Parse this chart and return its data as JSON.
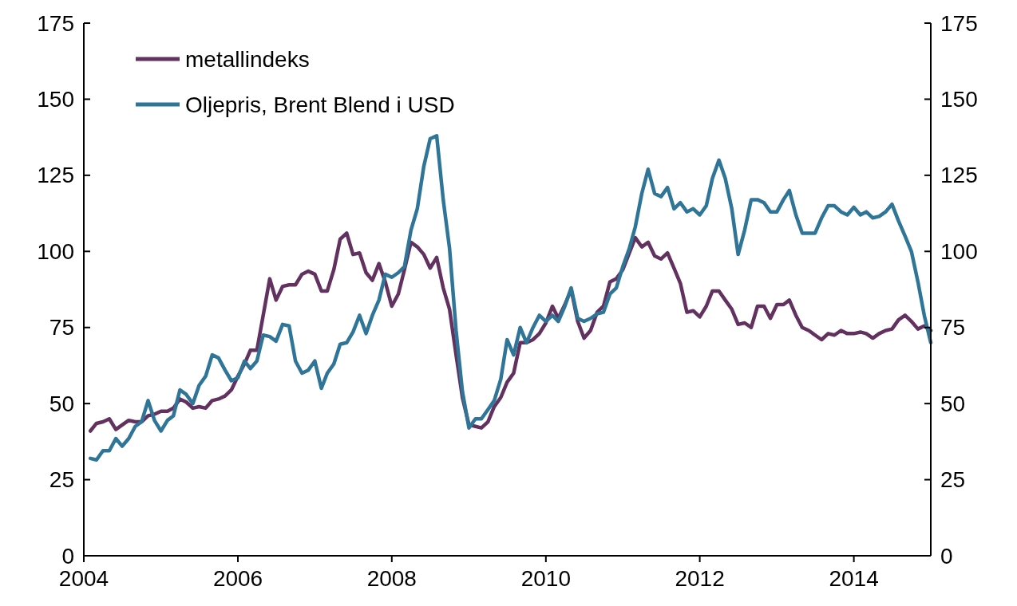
{
  "chart_data": {
    "type": "line",
    "xlim": [
      "2004-01-01",
      "2015-01-01"
    ],
    "xticks": [
      {
        "value": "2004-01-01",
        "label": "2004"
      },
      {
        "value": "2006-01-01",
        "label": "2006"
      },
      {
        "value": "2008-01-01",
        "label": "2008"
      },
      {
        "value": "2010-01-01",
        "label": "2010"
      },
      {
        "value": "2012-01-01",
        "label": "2012"
      },
      {
        "value": "2014-01-01",
        "label": "2014"
      }
    ],
    "ylim": [
      0,
      175
    ],
    "yticks": [
      0,
      25,
      50,
      75,
      100,
      125,
      150,
      175
    ],
    "y2lim": [
      0,
      175
    ],
    "y2ticks": [
      0,
      25,
      50,
      75,
      100,
      125,
      150,
      175
    ],
    "legend": "top left",
    "grid": false,
    "marker": "none",
    "line_style": "solid",
    "x": [
      "2004-02-01",
      "2004-03-01",
      "2004-04-01",
      "2004-05-01",
      "2004-06-01",
      "2004-07-01",
      "2004-08-01",
      "2004-09-01",
      "2004-10-01",
      "2004-11-01",
      "2004-12-01",
      "2005-01-01",
      "2005-02-01",
      "2005-03-01",
      "2005-04-01",
      "2005-05-01",
      "2005-06-01",
      "2005-07-01",
      "2005-08-01",
      "2005-09-01",
      "2005-10-01",
      "2005-11-01",
      "2005-12-01",
      "2006-01-01",
      "2006-02-01",
      "2006-03-01",
      "2006-04-01",
      "2006-05-01",
      "2006-06-01",
      "2006-07-01",
      "2006-08-01",
      "2006-09-01",
      "2006-10-01",
      "2006-11-01",
      "2006-12-01",
      "2007-01-01",
      "2007-02-01",
      "2007-03-01",
      "2007-04-01",
      "2007-05-01",
      "2007-06-01",
      "2007-07-01",
      "2007-08-01",
      "2007-09-01",
      "2007-10-01",
      "2007-11-01",
      "2007-12-01",
      "2008-01-01",
      "2008-02-01",
      "2008-03-01",
      "2008-04-01",
      "2008-05-01",
      "2008-06-01",
      "2008-07-01",
      "2008-08-01",
      "2008-09-01",
      "2008-10-01",
      "2008-11-01",
      "2008-12-01",
      "2009-01-01",
      "2009-02-01",
      "2009-03-01",
      "2009-04-01",
      "2009-05-01",
      "2009-06-01",
      "2009-07-01",
      "2009-08-01",
      "2009-09-01",
      "2009-10-01",
      "2009-11-01",
      "2009-12-01",
      "2010-01-01",
      "2010-02-01",
      "2010-03-01",
      "2010-04-01",
      "2010-05-01",
      "2010-06-01",
      "2010-07-01",
      "2010-08-01",
      "2010-09-01",
      "2010-10-01",
      "2010-11-01",
      "2010-12-01",
      "2011-01-01",
      "2011-02-01",
      "2011-03-01",
      "2011-04-01",
      "2011-05-01",
      "2011-06-01",
      "2011-07-01",
      "2011-08-01",
      "2011-09-01",
      "2011-10-01",
      "2011-11-01",
      "2011-12-01",
      "2012-01-01",
      "2012-02-01",
      "2012-03-01",
      "2012-04-01",
      "2012-05-01",
      "2012-06-01",
      "2012-07-01",
      "2012-08-01",
      "2012-09-01",
      "2012-10-01",
      "2012-11-01",
      "2012-12-01",
      "2013-01-01",
      "2013-02-01",
      "2013-03-01",
      "2013-04-01",
      "2013-05-01",
      "2013-06-01",
      "2013-07-01",
      "2013-08-01",
      "2013-09-01",
      "2013-10-01",
      "2013-11-01",
      "2013-12-01",
      "2014-01-01",
      "2014-02-01",
      "2014-03-01",
      "2014-04-01",
      "2014-05-01",
      "2014-06-01",
      "2014-07-01",
      "2014-08-01",
      "2014-09-01",
      "2014-10-01",
      "2014-11-01",
      "2014-12-01",
      "2015-01-01"
    ],
    "series": [
      {
        "name": "metallindeks",
        "color": "#62315f",
        "values": [
          41,
          43.5,
          44,
          45,
          41.5,
          43,
          44.5,
          44,
          44,
          46,
          46.5,
          47.5,
          47.5,
          48.5,
          51.5,
          50.5,
          48.5,
          49,
          48.5,
          51,
          51.5,
          52.5,
          54.5,
          59,
          63,
          67.5,
          67.5,
          79,
          91,
          84,
          88.5,
          89,
          89,
          92.5,
          93.5,
          92.5,
          87,
          87,
          94,
          104,
          106,
          99,
          99.5,
          93,
          90.5,
          96,
          90,
          82,
          86,
          94,
          103,
          101.5,
          99,
          94.5,
          98,
          88,
          81,
          66,
          52,
          43,
          42.5,
          42,
          44,
          49,
          52,
          57,
          60,
          70,
          70,
          71,
          73,
          76.5,
          82,
          78,
          82.5,
          87.5,
          77,
          71.5,
          74,
          80,
          82,
          90,
          91,
          94,
          99.5,
          104.5,
          101.5,
          103,
          98.5,
          97.5,
          99.5,
          94.5,
          89.5,
          80,
          80.5,
          78.5,
          82,
          87,
          87,
          84,
          81,
          76,
          76.5,
          75,
          82,
          82,
          78,
          82.5,
          82.5,
          84,
          79,
          75,
          74,
          72.5,
          71,
          73,
          72.5,
          74,
          73,
          73,
          73.5,
          73,
          71.5,
          73,
          74,
          74.5,
          77.5,
          79,
          77,
          74.5,
          75.5,
          74
        ]
      },
      {
        "name": "Oljepris, Brent Blend i USD",
        "color": "#2e7598",
        "values": [
          32,
          31.5,
          34.5,
          34.5,
          38.5,
          36,
          38.5,
          42.5,
          44,
          51,
          44.5,
          41,
          44.5,
          46,
          54.5,
          53,
          50,
          56,
          59,
          66,
          65,
          61,
          57.5,
          58.5,
          64,
          61.5,
          64,
          72.5,
          72,
          70.5,
          76,
          75.5,
          64,
          60,
          61,
          64,
          55,
          60,
          63,
          69.5,
          70,
          73.5,
          79,
          73,
          79,
          84,
          92.5,
          91.5,
          93,
          95,
          107,
          114,
          128,
          137,
          138,
          117,
          101,
          74,
          54,
          42,
          45,
          45,
          48,
          51,
          58,
          71,
          66,
          75,
          70,
          75,
          79,
          77,
          79,
          77,
          82,
          88,
          78,
          77,
          78,
          79.5,
          80,
          86,
          88,
          95,
          101,
          108,
          119,
          127,
          119,
          118,
          121,
          114,
          116,
          113,
          114,
          112,
          115,
          124,
          130,
          124,
          114,
          99,
          107,
          117,
          117,
          116,
          113,
          113,
          117,
          120,
          112,
          106,
          106,
          106,
          111,
          115,
          115,
          113,
          112,
          114.5,
          112,
          113,
          111,
          111.5,
          113,
          115.5,
          110,
          105,
          100,
          90,
          79,
          70
        ]
      }
    ]
  }
}
